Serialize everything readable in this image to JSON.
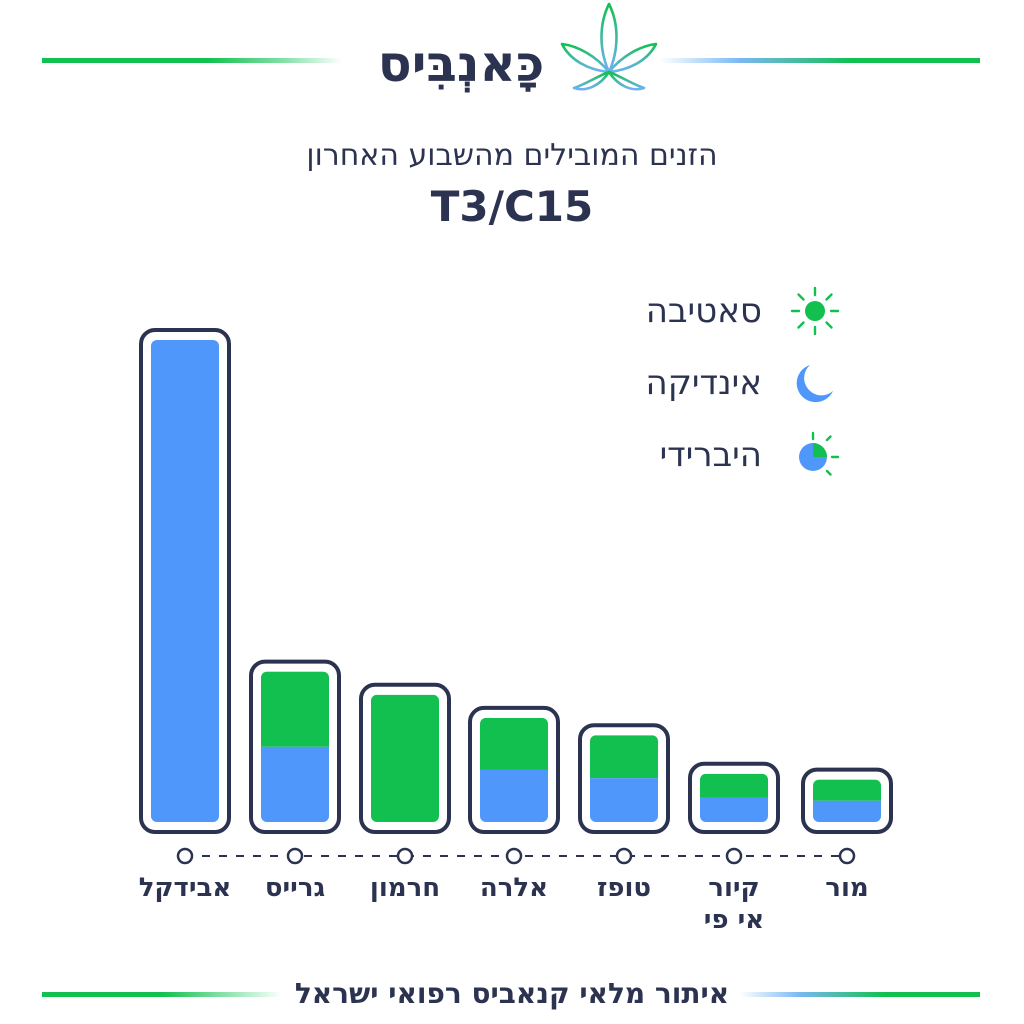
{
  "header": {
    "brand": "כָּאנְבִּיס",
    "subtitle": "הזנים המובילים מהשבוע האחרון"
  },
  "legend": [
    {
      "label": "סאטיבה",
      "icon": "sun-icon",
      "color": "#12c04f"
    },
    {
      "label": "אינדיקה",
      "icon": "moon-icon",
      "color": "#4f97fb"
    },
    {
      "label": "היברידי",
      "icon": "half-sun-icon",
      "color": "#4f97fb"
    }
  ],
  "chart_data": {
    "type": "bar",
    "title": "T3/C15",
    "categories": [
      "אבידקל",
      "גרייס",
      "חרמון",
      "אלרה",
      "טופז",
      "קיור אי פי",
      "מור"
    ],
    "label_lines": [
      [
        "אבידקל"
      ],
      [
        "גרייס"
      ],
      [
        "חרמון"
      ],
      [
        "אלרה"
      ],
      [
        "טופז"
      ],
      [
        "קיור",
        "אי פי"
      ],
      [
        "מור"
      ]
    ],
    "series": [
      {
        "values": [
          100,
          15.6,
          0,
          10.8,
          9.1,
          5.0,
          4.4
        ],
        "color": "#4f97fb"
      },
      {
        "values": [
          0,
          15.6,
          26.4,
          10.8,
          8.9,
          5.0,
          4.4
        ],
        "color": "#12c04f"
      }
    ],
    "ylim": [
      0,
      100
    ],
    "grid": false,
    "legend_position": "top-right",
    "colors": {
      "sativa": "#12c04f",
      "indica": "#4f97fb",
      "outline": "#2b3350"
    }
  },
  "footer": {
    "text": "איתור מלאי קנאביס רפואי ישראל"
  }
}
